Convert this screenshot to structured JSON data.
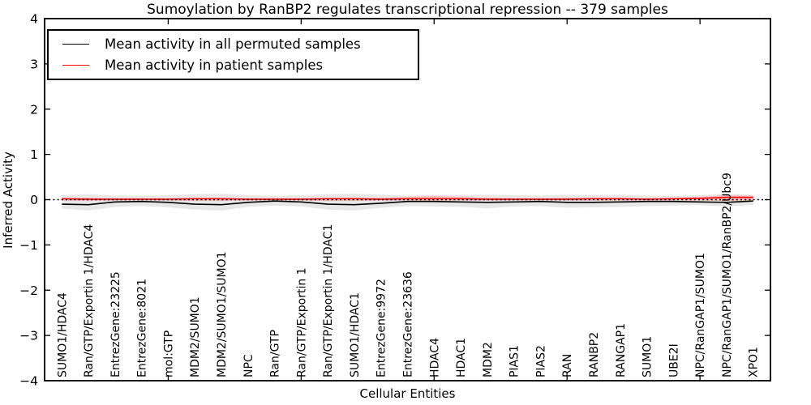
{
  "chart_data": {
    "type": "line",
    "title": "Sumoylation by RanBP2 regulates transcriptional repression -- 379 samples",
    "xlabel": "Cellular Entities",
    "ylabel": "Inferred Activity",
    "ylim": [
      -4,
      4
    ],
    "grid": false,
    "legend_position": "upper-left-inside",
    "yticks": [
      {
        "value": 4,
        "label": "4"
      },
      {
        "value": 3,
        "label": "3"
      },
      {
        "value": 2,
        "label": "2"
      },
      {
        "value": 1,
        "label": "1"
      },
      {
        "value": 0,
        "label": "0"
      },
      {
        "value": -1,
        "label": "−1"
      },
      {
        "value": -2,
        "label": "−2"
      },
      {
        "value": -3,
        "label": "−3"
      },
      {
        "value": -4,
        "label": "−4"
      }
    ],
    "xtick_positions": [
      5,
      10,
      15,
      20,
      25
    ],
    "categories": [
      "SUMO1/HDAC4",
      "Ran/GTP/Exportin 1/HDAC4",
      "EntrezGene:23225",
      "EntrezGene:8021",
      "mol:GTP",
      "MDM2/SUMO1",
      "MDM2/SUMO1/SUMO1",
      "NPC",
      "Ran/GTP",
      "Ran/GTP/Exportin 1",
      "Ran/GTP/Exportin 1/HDAC1",
      "SUMO1/HDAC1",
      "EntrezGene:9972",
      "EntrezGene:23636",
      "HDAC4",
      "HDAC1",
      "MDM2",
      "PIAS1",
      "PIAS2",
      "RAN",
      "RANBP2",
      "RANGAP1",
      "SUMO1",
      "UBE2I",
      "NPC/RanGAP1/SUMO1",
      "NPC/RanGAP1/SUMO1/RanBP2/Ubc9",
      "XPO1"
    ],
    "series": [
      {
        "name": "Mean activity in all permuted samples",
        "color": "#000000",
        "values": [
          -0.1,
          -0.11,
          -0.05,
          -0.04,
          -0.06,
          -0.1,
          -0.11,
          -0.06,
          -0.03,
          -0.05,
          -0.1,
          -0.11,
          -0.08,
          -0.04,
          -0.04,
          -0.05,
          -0.06,
          -0.05,
          -0.04,
          -0.06,
          -0.06,
          -0.05,
          -0.04,
          -0.04,
          -0.05,
          -0.06,
          -0.03
        ]
      },
      {
        "name": "Mean activity in patient samples",
        "color": "#ff0000",
        "values": [
          0.02,
          0.01,
          0.01,
          0.01,
          0.01,
          0.02,
          0.02,
          0.01,
          0.01,
          0.01,
          0.02,
          0.02,
          0.01,
          0.02,
          0.02,
          0.02,
          0.01,
          0.01,
          0.01,
          0.01,
          0.02,
          0.02,
          0.01,
          0.02,
          0.03,
          0.05,
          0.05
        ]
      }
    ],
    "bands": [
      {
        "name": "permuted-samples-range",
        "color": "#e7e7e7",
        "upper": [
          0.1,
          0.12,
          0.09,
          0.08,
          0.1,
          0.12,
          0.13,
          0.1,
          0.08,
          0.1,
          0.12,
          0.13,
          0.11,
          0.09,
          0.1,
          0.1,
          0.11,
          0.1,
          0.09,
          0.11,
          0.1,
          0.11,
          0.09,
          0.08,
          0.1,
          0.13,
          0.11
        ],
        "lower": [
          -0.2,
          -0.24,
          -0.16,
          -0.14,
          -0.17,
          -0.22,
          -0.24,
          -0.16,
          -0.13,
          -0.15,
          -0.22,
          -0.24,
          -0.18,
          -0.14,
          -0.15,
          -0.16,
          -0.19,
          -0.15,
          -0.14,
          -0.18,
          -0.17,
          -0.16,
          -0.14,
          -0.13,
          -0.12,
          -0.15,
          -0.12
        ]
      },
      {
        "name": "patient-samples-range",
        "color": "#f7bcbc",
        "upper": [
          0.04,
          0.04,
          0.03,
          0.03,
          0.03,
          0.04,
          0.04,
          0.03,
          0.03,
          0.03,
          0.04,
          0.04,
          0.04,
          0.06,
          0.08,
          0.06,
          0.04,
          0.03,
          0.03,
          0.04,
          0.04,
          0.04,
          0.03,
          0.04,
          0.06,
          0.1,
          0.09
        ],
        "lower": [
          -0.02,
          -0.03,
          -0.02,
          -0.02,
          -0.02,
          -0.03,
          -0.03,
          -0.02,
          -0.02,
          -0.02,
          -0.03,
          -0.03,
          -0.02,
          -0.02,
          -0.03,
          -0.02,
          -0.02,
          -0.02,
          -0.02,
          -0.02,
          -0.02,
          -0.02,
          -0.02,
          -0.02,
          -0.02,
          -0.03,
          -0.03
        ]
      }
    ],
    "zero_line": {
      "value": 0,
      "style": "dotted",
      "color": "#000000"
    }
  }
}
